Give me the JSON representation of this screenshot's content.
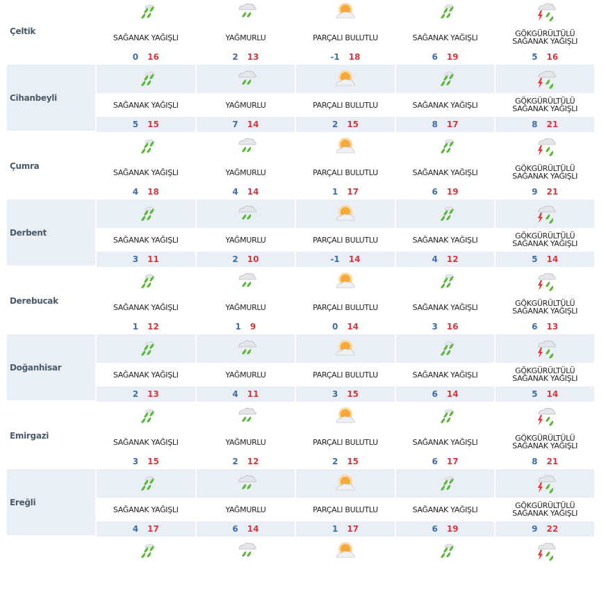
{
  "colors": {
    "min": "#3d6ea8",
    "max": "#d5373e",
    "alt_row_bg": "#e9eff4"
  },
  "conditions": {
    "heavy": {
      "label": "SAĞANAK YAĞIŞLI",
      "icon": "heavy-rain-icon"
    },
    "rain": {
      "label": "YAĞMURLU",
      "icon": "rain-cloud-icon"
    },
    "partly": {
      "label": "PARÇALI BULUTLU",
      "icon": "partly-cloudy-sun-icon"
    },
    "storm": {
      "label": "GÖKGÜRÜLTÜLÜ SAĞANAK YAĞIŞLI",
      "icon": "thunderstorm-rain-icon"
    }
  },
  "rows": [
    {
      "name": "Çeltik",
      "days": [
        {
          "c": "heavy",
          "min": "0",
          "max": "16"
        },
        {
          "c": "rain",
          "min": "2",
          "max": "13"
        },
        {
          "c": "partly",
          "min": "-1",
          "max": "18"
        },
        {
          "c": "heavy",
          "min": "6",
          "max": "19"
        },
        {
          "c": "storm",
          "min": "5",
          "max": "16"
        }
      ]
    },
    {
      "name": "Cihanbeyli",
      "days": [
        {
          "c": "heavy",
          "min": "5",
          "max": "15"
        },
        {
          "c": "rain",
          "min": "7",
          "max": "14"
        },
        {
          "c": "partly",
          "min": "2",
          "max": "15"
        },
        {
          "c": "heavy",
          "min": "8",
          "max": "17"
        },
        {
          "c": "storm",
          "min": "8",
          "max": "21"
        }
      ]
    },
    {
      "name": "Çumra",
      "days": [
        {
          "c": "heavy",
          "min": "4",
          "max": "18"
        },
        {
          "c": "rain",
          "min": "4",
          "max": "14"
        },
        {
          "c": "partly",
          "min": "1",
          "max": "17"
        },
        {
          "c": "heavy",
          "min": "6",
          "max": "19"
        },
        {
          "c": "storm",
          "min": "9",
          "max": "21"
        }
      ]
    },
    {
      "name": "Derbent",
      "days": [
        {
          "c": "heavy",
          "min": "3",
          "max": "11"
        },
        {
          "c": "rain",
          "min": "2",
          "max": "10"
        },
        {
          "c": "partly",
          "min": "-1",
          "max": "14"
        },
        {
          "c": "heavy",
          "min": "4",
          "max": "12"
        },
        {
          "c": "storm",
          "min": "5",
          "max": "14"
        }
      ]
    },
    {
      "name": "Derebucak",
      "days": [
        {
          "c": "heavy",
          "min": "1",
          "max": "12"
        },
        {
          "c": "rain",
          "min": "1",
          "max": "9"
        },
        {
          "c": "partly",
          "min": "0",
          "max": "14"
        },
        {
          "c": "heavy",
          "min": "3",
          "max": "16"
        },
        {
          "c": "storm",
          "min": "6",
          "max": "13"
        }
      ]
    },
    {
      "name": "Doğanhisar",
      "days": [
        {
          "c": "heavy",
          "min": "2",
          "max": "13"
        },
        {
          "c": "rain",
          "min": "4",
          "max": "11"
        },
        {
          "c": "partly",
          "min": "3",
          "max": "15"
        },
        {
          "c": "heavy",
          "min": "6",
          "max": "14"
        },
        {
          "c": "storm",
          "min": "5",
          "max": "14"
        }
      ]
    },
    {
      "name": "Emirgazi",
      "days": [
        {
          "c": "heavy",
          "min": "3",
          "max": "15"
        },
        {
          "c": "rain",
          "min": "2",
          "max": "12"
        },
        {
          "c": "partly",
          "min": "2",
          "max": "15"
        },
        {
          "c": "heavy",
          "min": "6",
          "max": "17"
        },
        {
          "c": "storm",
          "min": "8",
          "max": "21"
        }
      ]
    },
    {
      "name": "Ereğli",
      "days": [
        {
          "c": "heavy",
          "min": "4",
          "max": "17"
        },
        {
          "c": "rain",
          "min": "6",
          "max": "14"
        },
        {
          "c": "partly",
          "min": "1",
          "max": "17"
        },
        {
          "c": "heavy",
          "min": "6",
          "max": "19"
        },
        {
          "c": "storm",
          "min": "9",
          "max": "22"
        }
      ]
    }
  ]
}
